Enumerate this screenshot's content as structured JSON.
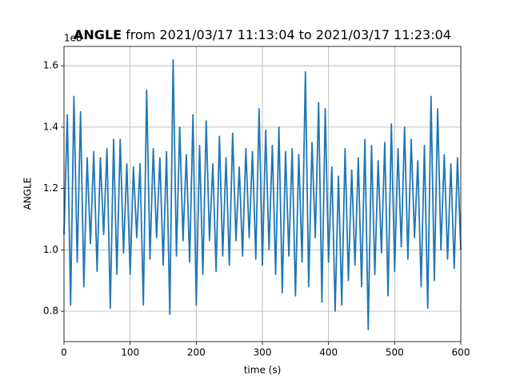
{
  "chart_data": {
    "type": "line",
    "title_bold": "ANGLE",
    "title": "from 2021/03/17 11:13:04 to 2021/03/17 11:23:04",
    "xlabel": "time (s)",
    "ylabel": "ANGLE",
    "y_offset_text": "1e8",
    "x": [
      0,
      5,
      10,
      15,
      20,
      25,
      30,
      35,
      40,
      45,
      50,
      55,
      60,
      65,
      70,
      75,
      80,
      85,
      90,
      95,
      100,
      105,
      110,
      115,
      120,
      125,
      130,
      135,
      140,
      145,
      150,
      155,
      160,
      165,
      170,
      175,
      180,
      185,
      190,
      195,
      200,
      205,
      210,
      215,
      220,
      225,
      230,
      235,
      240,
      245,
      250,
      255,
      260,
      265,
      270,
      275,
      280,
      285,
      290,
      295,
      300,
      305,
      310,
      315,
      320,
      325,
      330,
      335,
      340,
      345,
      350,
      355,
      360,
      365,
      370,
      375,
      380,
      385,
      390,
      395,
      400,
      405,
      410,
      415,
      420,
      425,
      430,
      435,
      440,
      445,
      450,
      455,
      460,
      465,
      470,
      475,
      480,
      485,
      490,
      495,
      500,
      505,
      510,
      515,
      520,
      525,
      530,
      535,
      540,
      545,
      550,
      555,
      560,
      565,
      570,
      575,
      580,
      585,
      590,
      595,
      600
    ],
    "series": [
      {
        "name": "ANGLE",
        "color": "#1f77b4",
        "values": [
          1.05,
          1.44,
          0.82,
          1.5,
          0.96,
          1.45,
          0.88,
          1.3,
          1.02,
          1.32,
          0.93,
          1.3,
          1.05,
          1.33,
          0.81,
          1.36,
          0.92,
          1.36,
          0.99,
          1.28,
          0.92,
          1.27,
          1.04,
          1.28,
          0.82,
          1.52,
          0.97,
          1.33,
          1.04,
          1.3,
          0.95,
          1.32,
          0.79,
          1.62,
          0.98,
          1.4,
          1.03,
          1.31,
          0.96,
          1.44,
          0.82,
          1.34,
          0.92,
          1.42,
          1.03,
          1.28,
          0.93,
          1.37,
          0.98,
          1.3,
          0.95,
          1.38,
          1.03,
          1.27,
          0.98,
          1.33,
          1.04,
          1.32,
          0.97,
          1.46,
          0.95,
          1.39,
          1.0,
          1.34,
          0.92,
          1.4,
          0.86,
          1.32,
          0.98,
          1.33,
          0.85,
          1.31,
          0.96,
          1.58,
          0.88,
          1.35,
          1.04,
          1.48,
          0.83,
          1.46,
          0.96,
          1.27,
          0.8,
          1.24,
          0.82,
          1.33,
          0.9,
          1.26,
          0.95,
          1.3,
          0.88,
          1.36,
          0.74,
          1.34,
          0.92,
          1.29,
          0.99,
          1.35,
          0.85,
          1.41,
          0.93,
          1.33,
          1.01,
          1.4,
          0.97,
          1.36,
          1.04,
          1.29,
          0.88,
          1.34,
          0.81,
          1.5,
          0.9,
          1.46,
          1.0,
          1.31,
          0.97,
          1.28,
          0.94,
          1.3,
          1.0
        ]
      }
    ],
    "xlim": [
      0,
      600
    ],
    "xticks": [
      0,
      100,
      200,
      300,
      400,
      500,
      600
    ],
    "ylim": [
      0.701,
      1.663
    ],
    "yticks": [
      0.8,
      {
        "value": 1,
        "label": "1.0"
      },
      1.2,
      1.4,
      1.6
    ],
    "grid": true
  }
}
